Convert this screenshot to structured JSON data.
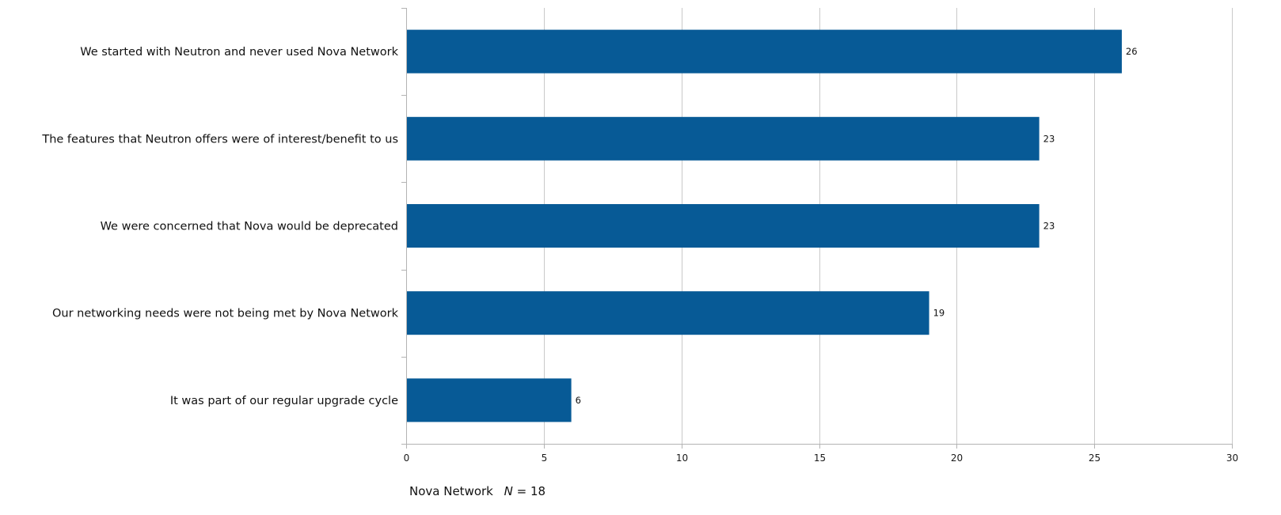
{
  "chart_data": {
    "type": "bar",
    "orientation": "horizontal",
    "categories": [
      "We started with Neutron and never used Nova Network",
      "The features that Neutron offers were of interest/benefit to us",
      "We were concerned that Nova would be deprecated",
      "Our networking needs were not being met by Nova Network",
      "It was part of our regular upgrade cycle"
    ],
    "values": [
      26,
      23,
      23,
      19,
      6
    ],
    "value_labels": [
      "26",
      "23",
      "23",
      "19",
      "6"
    ],
    "xlim": [
      0,
      30
    ],
    "x_ticks": [
      0,
      5,
      10,
      15,
      20,
      25,
      30
    ],
    "x_tick_labels": [
      "0",
      "5",
      "10",
      "15",
      "20",
      "25",
      "30"
    ],
    "grid": true,
    "legend": "none",
    "bar_color": "#075a96",
    "grid_color": "#c9c9c9",
    "axis_color": "#b3b3b3"
  },
  "footnote": {
    "prefix": "Nova Network",
    "n_symbol": "N",
    "suffix": "= 18"
  }
}
